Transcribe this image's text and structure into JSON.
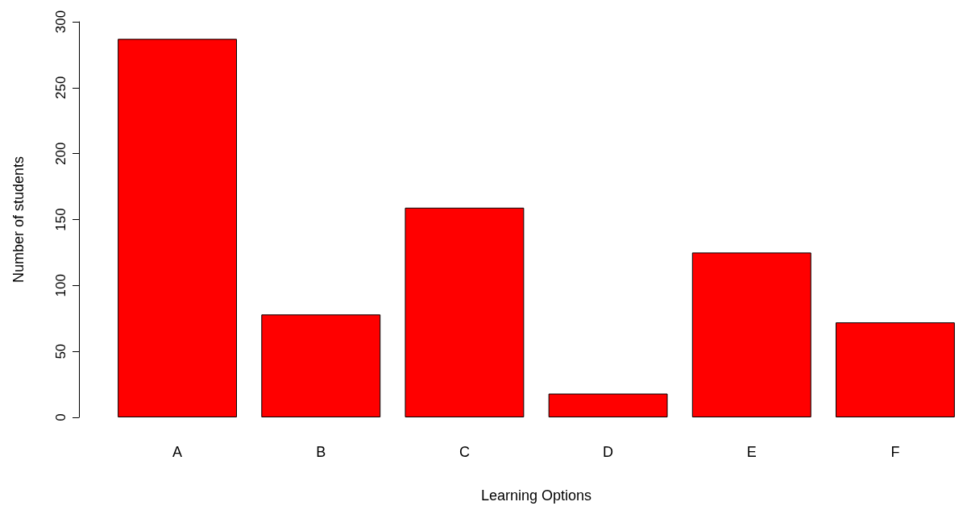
{
  "chart_data": {
    "type": "bar",
    "xlabel": "Learning Options",
    "ylabel": "Number of students",
    "categories": [
      "A",
      "B",
      "C",
      "D",
      "E",
      "F"
    ],
    "values": [
      287,
      78,
      159,
      18,
      125,
      72
    ],
    "color": "#ff0000",
    "ylim": [
      0,
      300
    ],
    "yticks": [
      0,
      50,
      100,
      150,
      200,
      250,
      300
    ],
    "grid": false
  }
}
